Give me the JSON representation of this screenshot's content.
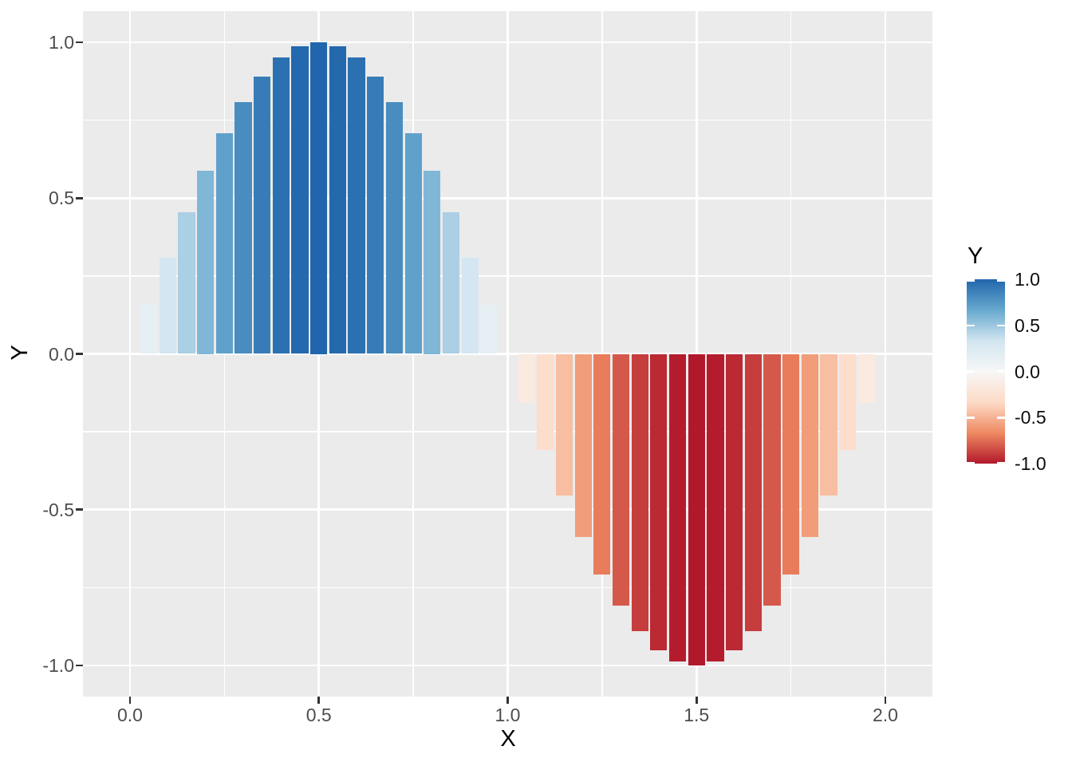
{
  "chart_data": {
    "type": "bar",
    "title": "",
    "xlabel": "X",
    "ylabel": "Y",
    "x_domain": [
      -0.0866,
      2.0866
    ],
    "y_domain": [
      -1.1,
      1.1
    ],
    "fill_domain": [
      -1,
      1
    ],
    "grid": "on",
    "panel_background": "#ebebeb",
    "grid_color": "#ffffff",
    "tick_color": "#333333",
    "axis_text_color": "#4d4d4d",
    "x_ticks": {
      "positions": [
        0.0,
        0.5,
        1.0,
        1.5,
        2.0
      ],
      "labels": [
        "0.0",
        "0.5",
        "1.0",
        "1.5",
        "2.0"
      ]
    },
    "y_ticks": {
      "positions": [
        1.0,
        0.5,
        0.0,
        -0.5,
        -1.0
      ],
      "labels": [
        "1.0",
        "0.5",
        "0.0",
        "-0.5",
        "-1.0"
      ]
    },
    "x_minor": [
      0.25,
      0.75,
      1.25,
      1.75
    ],
    "y_minor": [
      0.75,
      0.25,
      -0.25,
      -0.75
    ],
    "bar_width": 0.045,
    "palette_stops": [
      "#b2182b",
      "#ef8a62",
      "#fddbc7",
      "#f7f7f7",
      "#d1e5f0",
      "#67a9cf",
      "#2166ac"
    ],
    "bars": [
      {
        "x": 0.05,
        "y": 0.1564
      },
      {
        "x": 0.1,
        "y": 0.309
      },
      {
        "x": 0.15,
        "y": 0.454
      },
      {
        "x": 0.2,
        "y": 0.5878
      },
      {
        "x": 0.25,
        "y": 0.7071
      },
      {
        "x": 0.3,
        "y": 0.809
      },
      {
        "x": 0.35,
        "y": 0.891
      },
      {
        "x": 0.4,
        "y": 0.9511
      },
      {
        "x": 0.45,
        "y": 0.9877
      },
      {
        "x": 0.5,
        "y": 1.0
      },
      {
        "x": 0.55,
        "y": 0.9877
      },
      {
        "x": 0.6,
        "y": 0.9511
      },
      {
        "x": 0.65,
        "y": 0.891
      },
      {
        "x": 0.7,
        "y": 0.809
      },
      {
        "x": 0.75,
        "y": 0.7071
      },
      {
        "x": 0.8,
        "y": 0.5878
      },
      {
        "x": 0.85,
        "y": 0.454
      },
      {
        "x": 0.9,
        "y": 0.309
      },
      {
        "x": 0.95,
        "y": 0.1564
      },
      {
        "x": 1.05,
        "y": -0.1564
      },
      {
        "x": 1.1,
        "y": -0.309
      },
      {
        "x": 1.15,
        "y": -0.454
      },
      {
        "x": 1.2,
        "y": -0.5878
      },
      {
        "x": 1.25,
        "y": -0.7071
      },
      {
        "x": 1.3,
        "y": -0.809
      },
      {
        "x": 1.35,
        "y": -0.891
      },
      {
        "x": 1.4,
        "y": -0.9511
      },
      {
        "x": 1.45,
        "y": -0.9877
      },
      {
        "x": 1.5,
        "y": -1.0
      },
      {
        "x": 1.55,
        "y": -0.9877
      },
      {
        "x": 1.6,
        "y": -0.9511
      },
      {
        "x": 1.65,
        "y": -0.891
      },
      {
        "x": 1.7,
        "y": -0.809
      },
      {
        "x": 1.75,
        "y": -0.7071
      },
      {
        "x": 1.8,
        "y": -0.5878
      },
      {
        "x": 1.85,
        "y": -0.454
      },
      {
        "x": 1.9,
        "y": -0.309
      },
      {
        "x": 1.95,
        "y": -0.1564
      }
    ],
    "legend": {
      "title": "Y",
      "position": "right",
      "values": [
        1.0,
        0.5,
        0.0,
        -0.5,
        -1.0
      ],
      "labels": [
        "1.0",
        "0.5",
        "0.0",
        "-0.5",
        "-1.0"
      ],
      "gradient_top_to_bottom": [
        "#2166ac",
        "#67a9cf",
        "#d1e5f0",
        "#f7f7f7",
        "#fddbc7",
        "#ef8a62",
        "#b2182b"
      ]
    }
  }
}
